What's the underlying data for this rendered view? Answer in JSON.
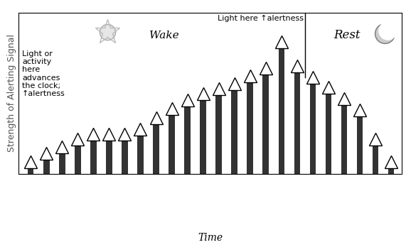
{
  "chart_data": {
    "type": "bar",
    "y_label": "Strength of Alerting Signal",
    "x_label": "Time",
    "categories": [
      null,
      null,
      null,
      null,
      null,
      null,
      null,
      null,
      null,
      null,
      null,
      null,
      null,
      null,
      null,
      null,
      null,
      null,
      null,
      null,
      null,
      null,
      null,
      null
    ],
    "values": [
      4,
      9,
      13,
      18,
      21,
      21,
      21,
      24,
      31,
      37,
      42,
      46,
      49,
      52,
      57,
      62,
      78,
      63,
      56,
      50,
      43,
      36,
      18,
      4
    ],
    "color": "#333333",
    "ylim": [
      0,
      100
    ],
    "tick_labels": false,
    "marker": "triangle",
    "phases": [
      {
        "label": "Wake",
        "bars": 18
      },
      {
        "label": "Rest",
        "bars": 6
      }
    ],
    "annotations": [
      "Light or\nactivity\nhere\nadvances\nthe clock;\n↑alertness",
      "Light here ↑alertness"
    ]
  }
}
